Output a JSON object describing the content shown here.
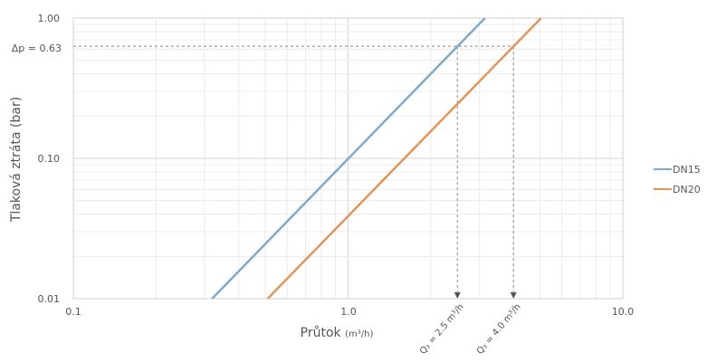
{
  "chart_data": {
    "type": "line",
    "x_scale": "log",
    "y_scale": "log",
    "xlim": [
      0.1,
      10.0
    ],
    "ylim": [
      0.01,
      1.0
    ],
    "x_ticks": [
      "0.1",
      "1.0",
      "10.0"
    ],
    "y_ticks": [
      "0.01",
      "0.10",
      "1.00"
    ],
    "xlabel": "Průtok",
    "xlabel_unit": "(m³/h)",
    "ylabel": "Tlaková ztráta (bar)",
    "grid": true,
    "legend_position": "right",
    "series": [
      {
        "name": "DN15",
        "color": "#7fa8c9",
        "x": [
          0.32,
          3.15
        ],
        "y": [
          0.01,
          1.0
        ]
      },
      {
        "name": "DN20",
        "color": "#e0965a",
        "x": [
          0.51,
          5.04
        ],
        "y": [
          0.01,
          1.0
        ]
      }
    ],
    "annotations": {
      "dp_label": "Δp = 0.63",
      "dp_value": 0.63,
      "q1_label": "Q₃ = 2.5 m³/h",
      "q1_value": 2.5,
      "q2_label": "Q₃ = 4.0 m³/h",
      "q2_value": 4.0
    }
  }
}
